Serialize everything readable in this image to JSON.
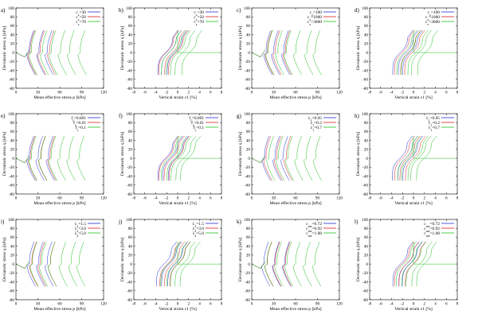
{
  "figure": {
    "colors": {
      "blue": "#1f2fd6",
      "red": "#d62020",
      "green": "#22c022",
      "black": "#000000",
      "purple": "#7a2a9a",
      "olive": "#8a7a10"
    }
  },
  "chart_data": [
    {
      "label": "a)",
      "type": "line",
      "xlabel": "Mean effective stress p [kPa]",
      "ylabel": "Deviatoric stress q [kPa]",
      "xlim": [
        0,
        120
      ],
      "ylim": [
        -80,
        100
      ],
      "xticks": [
        0,
        30,
        60,
        90,
        120
      ],
      "yticks": [
        -80,
        -60,
        -40,
        -20,
        0,
        20,
        40,
        60,
        80,
        100
      ],
      "kind": "stress-path",
      "legend": [
        "c_z=30",
        "c_z=50",
        "c_z=70"
      ],
      "series_colors": [
        "blue",
        "red",
        "green"
      ]
    },
    {
      "label": "b)",
      "type": "line",
      "xlabel": "Vertical strain ε1 [%]",
      "ylabel": "Deviatoric stress q [kPa]",
      "xlim": [
        -8,
        8
      ],
      "ylim": [
        -80,
        100
      ],
      "xticks": [
        -8,
        -6,
        -4,
        -2,
        0,
        2,
        4,
        6,
        8
      ],
      "yticks": [
        -80,
        -60,
        -40,
        -20,
        0,
        20,
        40,
        60,
        80,
        100
      ],
      "kind": "strain",
      "legend": [
        "c_z=30",
        "c_z=50",
        "c_z=70"
      ],
      "series_colors": [
        "blue",
        "red",
        "green"
      ]
    },
    {
      "label": "c)",
      "type": "line",
      "xlabel": "Mean effective stress p [kPa]",
      "ylabel": "Deviatoric stress q [kPa]",
      "xlim": [
        0,
        120
      ],
      "ylim": [
        -80,
        100
      ],
      "xticks": [
        0,
        30,
        60,
        90,
        120
      ],
      "yticks": [
        -80,
        -60,
        -40,
        -20,
        0,
        20,
        40,
        60,
        80,
        100
      ],
      "kind": "stress-path",
      "legend": [
        "c_z=100",
        "c_z=1000",
        "c_z=3000"
      ],
      "series_colors": [
        "blue",
        "red",
        "green"
      ]
    },
    {
      "label": "d)",
      "type": "line",
      "xlabel": "Vertical strain ε1 [%]",
      "ylabel": "Deviatoric stress q [kPa]",
      "xlim": [
        -8,
        8
      ],
      "ylim": [
        -80,
        100
      ],
      "xticks": [
        -8,
        -6,
        -4,
        -2,
        0,
        2,
        4,
        6,
        8
      ],
      "yticks": [
        -80,
        -60,
        -40,
        -20,
        0,
        20,
        40,
        60,
        80,
        100
      ],
      "kind": "strain",
      "legend": [
        "c_z=100",
        "c_z=1000",
        "c_z=3000"
      ],
      "series_colors": [
        "blue",
        "red",
        "green"
      ]
    },
    {
      "label": "e)",
      "type": "line",
      "xlabel": "Mean effective stress p [kPa]",
      "ylabel": "Deviatoric stress q [kPa]",
      "xlim": [
        0,
        120
      ],
      "ylim": [
        -80,
        100
      ],
      "xticks": [
        0,
        30,
        60,
        90,
        120
      ],
      "yticks": [
        -80,
        -60,
        -40,
        -20,
        0,
        20,
        40,
        60,
        80,
        100
      ],
      "kind": "stress-path",
      "legend": [
        "f_ζ=0.001",
        "f_ζ=0.01",
        "f_ζ=0.1"
      ],
      "series_colors": [
        "blue",
        "red",
        "green"
      ]
    },
    {
      "label": "f)",
      "type": "line",
      "xlabel": "Vertical strain ε1 [%]",
      "ylabel": "Deviatoric stress q [kPa]",
      "xlim": [
        -8,
        8
      ],
      "ylim": [
        -80,
        100
      ],
      "xticks": [
        -8,
        -6,
        -4,
        -2,
        0,
        2,
        4,
        6,
        8
      ],
      "yticks": [
        -80,
        -60,
        -40,
        -20,
        0,
        20,
        40,
        60,
        80,
        100
      ],
      "kind": "strain",
      "legend": [
        "f_ζ=0.001",
        "f_ζ=0.01",
        "f_ζ=0.1"
      ],
      "series_colors": [
        "blue",
        "red",
        "green"
      ]
    },
    {
      "label": "g)",
      "type": "line",
      "xlabel": "Mean effective stress p [kPa]",
      "ylabel": "Deviatoric stress q [kPa]",
      "xlim": [
        0,
        120
      ],
      "ylim": [
        -80,
        100
      ],
      "xticks": [
        0,
        30,
        60,
        90,
        120
      ],
      "yticks": [
        -80,
        -60,
        -40,
        -20,
        0,
        20,
        40,
        60,
        80,
        100
      ],
      "kind": "stress-path",
      "legend": [
        "λ_1=0.05",
        "λ_1=0.2",
        "λ_1=0.7"
      ],
      "series_colors": [
        "blue",
        "red",
        "green"
      ]
    },
    {
      "label": "h)",
      "type": "line",
      "xlabel": "Vertical strain ε1 [%]",
      "ylabel": "Deviatoric stress q [kPa]",
      "xlim": [
        -8,
        8
      ],
      "ylim": [
        -80,
        100
      ],
      "xticks": [
        -8,
        -6,
        -4,
        -2,
        0,
        2,
        4,
        6,
        8
      ],
      "yticks": [
        -80,
        -60,
        -40,
        -20,
        0,
        20,
        40,
        60,
        80,
        100
      ],
      "kind": "strain",
      "legend": [
        "λ_1=0.05",
        "λ_1=0.2",
        "λ_1=0.7"
      ],
      "series_colors": [
        "blue",
        "red",
        "green"
      ]
    },
    {
      "label": "i)",
      "type": "line",
      "xlabel": "Mean effective stress p [kPa]",
      "ylabel": "Deviatoric stress q [kPa]",
      "xlim": [
        0,
        120
      ],
      "ylim": [
        -80,
        100
      ],
      "xticks": [
        0,
        30,
        60,
        90,
        120
      ],
      "yticks": [
        -80,
        -60,
        -40,
        -20,
        0,
        20,
        40,
        60,
        80,
        100
      ],
      "kind": "stress-path",
      "legend": [
        "λ_2=1.5",
        "λ_2=3.0",
        "λ_2=5.0"
      ],
      "series_colors": [
        "blue",
        "red",
        "green"
      ]
    },
    {
      "label": "j)",
      "type": "line",
      "xlabel": "Vertical strain ε1 [%]",
      "ylabel": "Deviatoric stress q [kPa]",
      "xlim": [
        -8,
        8
      ],
      "ylim": [
        -80,
        100
      ],
      "xticks": [
        -8,
        -6,
        -4,
        -2,
        0,
        2,
        4,
        6,
        8
      ],
      "yticks": [
        -80,
        -60,
        -40,
        -20,
        0,
        20,
        40,
        60,
        80,
        100
      ],
      "kind": "strain",
      "legend": [
        "λ_2=1.5",
        "λ_2=3.0",
        "λ_2=5.0"
      ],
      "series_colors": [
        "blue",
        "red",
        "green"
      ]
    },
    {
      "label": "k)",
      "type": "line",
      "xlabel": "Mean effective stress p [kPa]",
      "ylabel": "Deviatoric stress q [kPa]",
      "xlim": [
        0,
        120
      ],
      "ylim": [
        -80,
        100
      ],
      "xticks": [
        0,
        30,
        60,
        90,
        120
      ],
      "yticks": [
        -80,
        -60,
        -40,
        -20,
        0,
        20,
        40,
        60,
        80,
        100
      ],
      "kind": "stress-path",
      "legend": [
        "c_me=0.72",
        "c_me=0.92",
        "c_me=1.08"
      ],
      "series_colors": [
        "blue",
        "red",
        "green"
      ]
    },
    {
      "label": "l)",
      "type": "line",
      "xlabel": "Vertical strain ε1 [%]",
      "ylabel": "Deviatoric stress q [kPa]",
      "xlim": [
        -8,
        8
      ],
      "ylim": [
        -80,
        100
      ],
      "xticks": [
        -8,
        -6,
        -4,
        -2,
        0,
        2,
        4,
        6,
        8
      ],
      "yticks": [
        -80,
        -60,
        -40,
        -20,
        0,
        20,
        40,
        60,
        80,
        100
      ],
      "kind": "strain",
      "legend": [
        "c_me=0.72",
        "c_me=0.92",
        "c_me=1.08"
      ],
      "series_colors": [
        "blue",
        "red",
        "green"
      ]
    }
  ]
}
